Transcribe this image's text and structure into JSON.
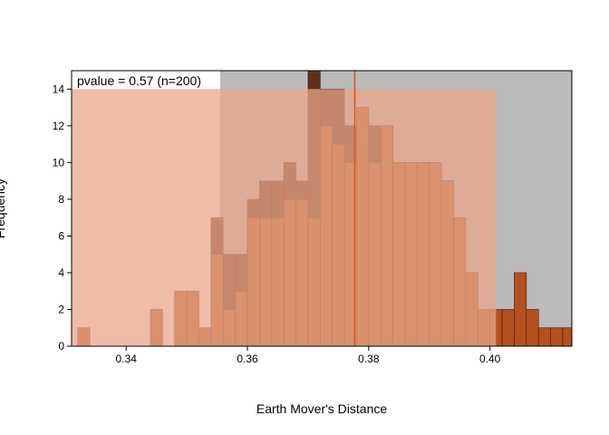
{
  "chart_data": {
    "type": "bar",
    "title": "",
    "xlabel": "Earth Mover's Distance",
    "ylabel": "Frequency",
    "xlim": [
      0.331,
      0.4135
    ],
    "ylim": [
      0,
      15
    ],
    "bin_width": 0.002,
    "x_ticks": [
      0.34,
      0.36,
      0.38,
      0.4
    ],
    "x_tick_labels": [
      "0.34",
      "0.36",
      "0.38",
      "0.40"
    ],
    "y_ticks": [
      0,
      2,
      4,
      6,
      8,
      10,
      12,
      14
    ],
    "y_tick_labels": [
      "0",
      "2",
      "4",
      "6",
      "8",
      "10",
      "12",
      "14"
    ],
    "annotation": "pvalue = 0.57 (n=200)",
    "observed_value": 0.3777,
    "shaded_regions": [
      {
        "name": "interval-gray",
        "x0": 0.3555,
        "x1": 0.4135,
        "color": "#bbbbbb"
      },
      {
        "name": "interval-salmon",
        "x0": 0.331,
        "x1": 0.401,
        "color": "#e8a68a",
        "top": 14
      }
    ],
    "series": [
      {
        "name": "dark-histogram",
        "color": "#62301a",
        "bins": [
          {
            "x": 0.354,
            "count": 7
          },
          {
            "x": 0.356,
            "count": 5
          },
          {
            "x": 0.358,
            "count": 5
          },
          {
            "x": 0.36,
            "count": 8
          },
          {
            "x": 0.362,
            "count": 9
          },
          {
            "x": 0.364,
            "count": 9
          },
          {
            "x": 0.366,
            "count": 10
          },
          {
            "x": 0.368,
            "count": 9
          },
          {
            "x": 0.37,
            "count": 15
          },
          {
            "x": 0.372,
            "count": 14
          },
          {
            "x": 0.374,
            "count": 14
          },
          {
            "x": 0.376,
            "count": 12
          },
          {
            "x": 0.378,
            "count": 11
          },
          {
            "x": 0.38,
            "count": 12
          }
        ]
      },
      {
        "name": "orange-histogram",
        "color": "#b5501f",
        "bins": [
          {
            "x": 0.332,
            "count": 1
          },
          {
            "x": 0.344,
            "count": 2
          },
          {
            "x": 0.348,
            "count": 3
          },
          {
            "x": 0.35,
            "count": 3
          },
          {
            "x": 0.352,
            "count": 1
          },
          {
            "x": 0.354,
            "count": 5
          },
          {
            "x": 0.356,
            "count": 2
          },
          {
            "x": 0.358,
            "count": 3
          },
          {
            "x": 0.36,
            "count": 7
          },
          {
            "x": 0.362,
            "count": 7
          },
          {
            "x": 0.364,
            "count": 7
          },
          {
            "x": 0.366,
            "count": 8
          },
          {
            "x": 0.368,
            "count": 8
          },
          {
            "x": 0.37,
            "count": 7
          },
          {
            "x": 0.372,
            "count": 12
          },
          {
            "x": 0.374,
            "count": 11
          },
          {
            "x": 0.376,
            "count": 10
          },
          {
            "x": 0.378,
            "count": 13
          },
          {
            "x": 0.38,
            "count": 10
          },
          {
            "x": 0.382,
            "count": 12
          },
          {
            "x": 0.384,
            "count": 10
          },
          {
            "x": 0.386,
            "count": 10
          },
          {
            "x": 0.388,
            "count": 10
          },
          {
            "x": 0.39,
            "count": 10
          },
          {
            "x": 0.392,
            "count": 9
          },
          {
            "x": 0.394,
            "count": 7
          },
          {
            "x": 0.396,
            "count": 4
          },
          {
            "x": 0.398,
            "count": 2
          },
          {
            "x": 0.4,
            "count": 2
          },
          {
            "x": 0.402,
            "count": 2
          },
          {
            "x": 0.404,
            "count": 4
          },
          {
            "x": 0.406,
            "count": 2
          },
          {
            "x": 0.408,
            "count": 1
          },
          {
            "x": 0.41,
            "count": 1
          },
          {
            "x": 0.412,
            "count": 1
          }
        ]
      }
    ]
  }
}
